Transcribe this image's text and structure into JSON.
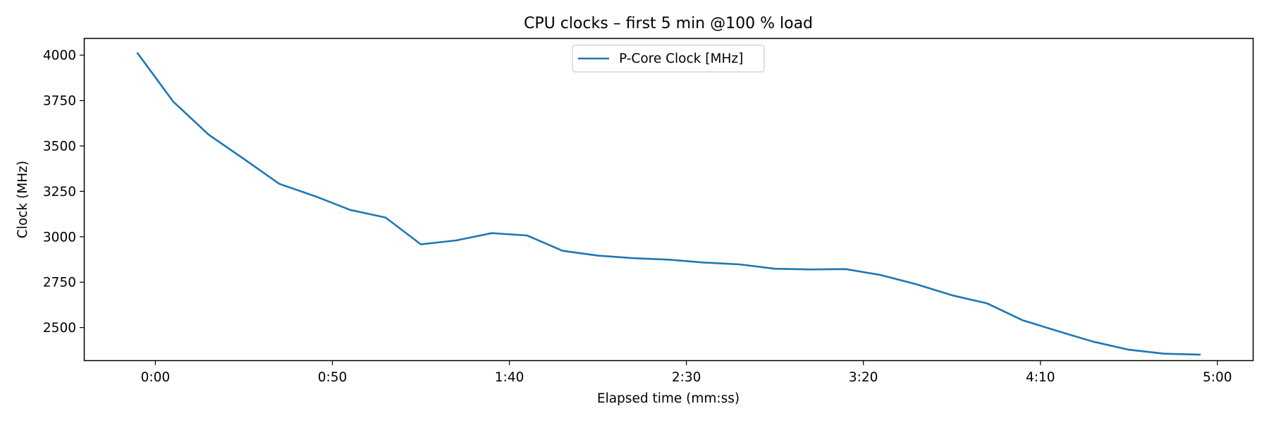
{
  "chart_data": {
    "type": "line",
    "title": "CPU clocks – first 5 min @100 % load",
    "xlabel": "Elapsed time (mm:ss)",
    "ylabel": "Clock (MHz)",
    "x_unit": "seconds",
    "xlim": [
      -20,
      310
    ],
    "ylim": [
      2320,
      4090
    ],
    "x_ticks": [
      {
        "value": 0,
        "label": "0:00"
      },
      {
        "value": 50,
        "label": "0:50"
      },
      {
        "value": 100,
        "label": "1:40"
      },
      {
        "value": 150,
        "label": "2:30"
      },
      {
        "value": 200,
        "label": "3:20"
      },
      {
        "value": 250,
        "label": "4:10"
      },
      {
        "value": 300,
        "label": "5:00"
      }
    ],
    "y_ticks": [
      {
        "value": 2500,
        "label": "2500"
      },
      {
        "value": 2750,
        "label": "2750"
      },
      {
        "value": 3000,
        "label": "3000"
      },
      {
        "value": 3250,
        "label": "3250"
      },
      {
        "value": 3500,
        "label": "3500"
      },
      {
        "value": 3750,
        "label": "3750"
      },
      {
        "value": 4000,
        "label": "4000"
      }
    ],
    "grid": false,
    "legend_position": "upper-center",
    "series": [
      {
        "name": "P-Core Clock [MHz]",
        "color": "#1f77b4",
        "x": [
          -5,
          5,
          15,
          25,
          35,
          45,
          55,
          65,
          75,
          85,
          95,
          105,
          115,
          125,
          135,
          145,
          155,
          165,
          175,
          185,
          195,
          205,
          215,
          225,
          235,
          245,
          255,
          265,
          275,
          285,
          295
        ],
        "y": [
          4010,
          3745,
          3563,
          3428,
          3291,
          3224,
          3148,
          3106,
          2958,
          2980,
          3020,
          3007,
          2923,
          2896,
          2882,
          2874,
          2858,
          2848,
          2824,
          2820,
          2822,
          2789,
          2738,
          2678,
          2633,
          2540,
          2480,
          2422,
          2378,
          2356,
          2351
        ]
      }
    ]
  }
}
